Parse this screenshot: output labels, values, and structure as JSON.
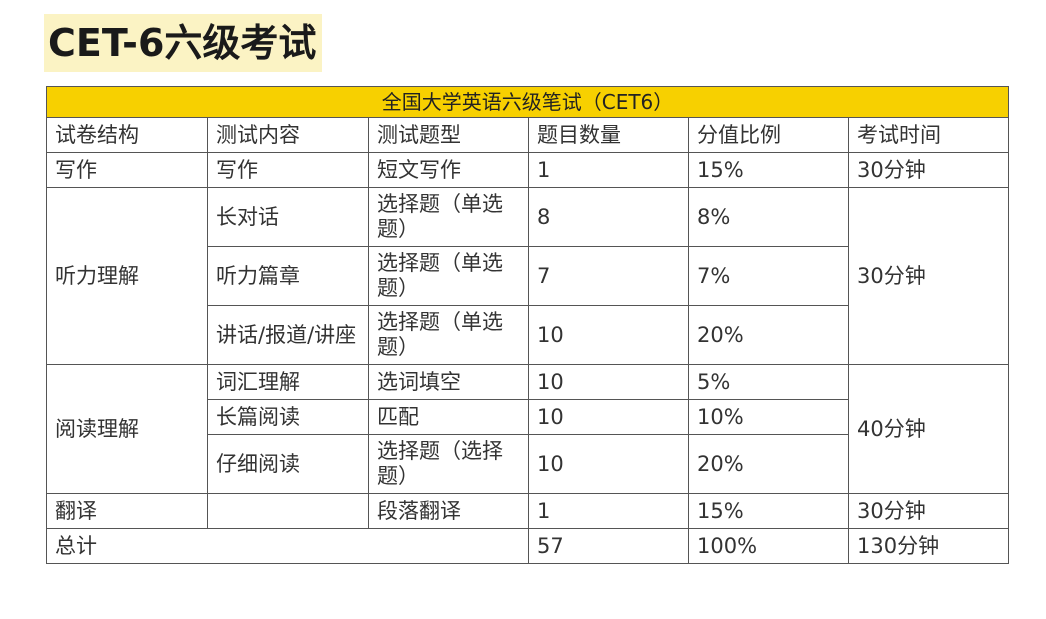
{
  "title": "CET-6六级考试",
  "table": {
    "banner": "全国大学英语六级笔试（CET6）",
    "headers": [
      "试卷结构",
      "测试内容",
      "测试题型",
      "题目数量",
      "分值比例",
      "考试时间"
    ],
    "writing": {
      "section": "写作",
      "content": "写作",
      "type": "短文写作",
      "count": "1",
      "ratio": "15%",
      "time": "30分钟"
    },
    "listening": {
      "section": "听力理解",
      "time": "30分钟",
      "rows": [
        {
          "content": "长对话",
          "type": "选择题（单选题）",
          "count": "8",
          "ratio": "8%"
        },
        {
          "content": "听力篇章",
          "type": "选择题（单选题）",
          "count": "7",
          "ratio": "7%"
        },
        {
          "content": "讲话/报道/讲座",
          "type": "选择题（单选题）",
          "count": "10",
          "ratio": "20%"
        }
      ]
    },
    "reading": {
      "section": "阅读理解",
      "time": "40分钟",
      "rows": [
        {
          "content": "词汇理解",
          "type": "选词填空",
          "count": "10",
          "ratio": "5%"
        },
        {
          "content": "长篇阅读",
          "type": "匹配",
          "count": "10",
          "ratio": "10%"
        },
        {
          "content": "仔细阅读",
          "type": "选择题（选择题）",
          "count": "10",
          "ratio": "20%"
        }
      ]
    },
    "translation": {
      "section": "翻译",
      "content": "",
      "type": "段落翻译",
      "count": "1",
      "ratio": "15%",
      "time": "30分钟"
    },
    "total": {
      "label": "总计",
      "count": "57",
      "ratio": "100%",
      "time": "130分钟"
    }
  }
}
